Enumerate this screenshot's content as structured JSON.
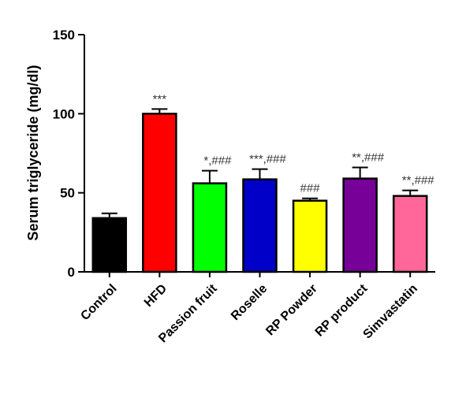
{
  "chart_data": {
    "type": "bar",
    "title": "",
    "xlabel": "",
    "ylabel": "Serum triglyceride (mg/dl)",
    "ylim": [
      0,
      150
    ],
    "yticks": [
      0,
      50,
      100,
      150
    ],
    "grid": false,
    "legend": "none",
    "categories": [
      "Control",
      "HFD",
      "Passion fruit",
      "Roselle",
      "RP Powder",
      "RP product",
      "Simvastatin"
    ],
    "values": [
      34,
      100,
      56,
      58.5,
      45,
      59,
      48
    ],
    "errors": [
      3,
      3,
      8,
      6.5,
      1.5,
      7,
      3.5
    ],
    "colors": [
      "#000000",
      "#ff0000",
      "#00ff00",
      "#0000c8",
      "#ffff00",
      "#770099",
      "#ff6699"
    ],
    "annotations": [
      "",
      "***",
      "*,###",
      "***,###",
      "###",
      "**,###",
      "**,###"
    ]
  }
}
